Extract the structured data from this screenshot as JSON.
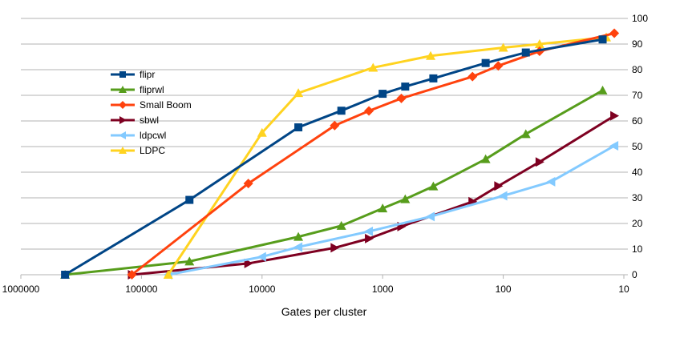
{
  "chart_data": {
    "type": "line",
    "title": "",
    "xlabel": "Gates per cluster",
    "ylabel": "",
    "x_scale": "log",
    "x_reversed": true,
    "xlim": [
      1000000,
      10
    ],
    "ylim": [
      0,
      100
    ],
    "x_ticks": [
      "1000000",
      "100000",
      "10000",
      "1000",
      "100",
      "10"
    ],
    "y_ticks": [
      "0",
      "10",
      "20",
      "30",
      "40",
      "50",
      "60",
      "70",
      "80",
      "90",
      "100"
    ],
    "y_axis_position": "right",
    "grid": "horizontal",
    "legend_position": "left",
    "series": [
      {
        "name": "flipr",
        "color": "#004586",
        "marker": "square",
        "points": [
          [
            430000,
            0
          ],
          [
            40000,
            29.2
          ],
          [
            5000,
            57.5
          ],
          [
            2200,
            64
          ],
          [
            1000,
            70.6
          ],
          [
            650,
            73.4
          ],
          [
            380,
            76.6
          ],
          [
            140,
            82.6
          ],
          [
            65,
            86.7
          ],
          [
            15,
            91.8
          ]
        ]
      },
      {
        "name": "fliprwl",
        "color": "#579D1C",
        "marker": "triangle-up",
        "points": [
          [
            430000,
            0
          ],
          [
            40000,
            5.2
          ],
          [
            5000,
            14.8
          ],
          [
            2200,
            19.1
          ],
          [
            1000,
            25.9
          ],
          [
            650,
            29.5
          ],
          [
            380,
            34.5
          ],
          [
            140,
            45.1
          ],
          [
            65,
            54.9
          ],
          [
            15,
            71.9
          ]
        ]
      },
      {
        "name": "Small Boom",
        "color": "#FF420E",
        "marker": "diamond",
        "points": [
          [
            120000,
            0
          ],
          [
            13000,
            35.6
          ],
          [
            2500,
            58.2
          ],
          [
            1300,
            63.9
          ],
          [
            700,
            68.8
          ],
          [
            180,
            77.3
          ],
          [
            110,
            81.5
          ],
          [
            50,
            87.2
          ],
          [
            12,
            94.2
          ]
        ]
      },
      {
        "name": "sbwl",
        "color": "#7E0021",
        "marker": "triangle-right",
        "points": [
          [
            120000,
            0
          ],
          [
            13000,
            4.4
          ],
          [
            2500,
            10.5
          ],
          [
            1300,
            14.1
          ],
          [
            700,
            18.8
          ],
          [
            180,
            28.5
          ],
          [
            110,
            34.6
          ],
          [
            50,
            44
          ],
          [
            12,
            62
          ]
        ]
      },
      {
        "name": "ldpcwl",
        "color": "#83CAFF",
        "marker": "triangle-left",
        "points": [
          [
            60000,
            0
          ],
          [
            10000,
            7
          ],
          [
            5000,
            10.8
          ],
          [
            1300,
            16.9
          ],
          [
            400,
            22.7
          ],
          [
            100,
            30.8
          ],
          [
            40,
            36.3
          ],
          [
            12,
            50.3
          ]
        ]
      },
      {
        "name": "LDPC",
        "color": "#FFD320",
        "marker": "triangle-up",
        "points": [
          [
            60000,
            0
          ],
          [
            10000,
            55.4
          ],
          [
            5000,
            70.9
          ],
          [
            1200,
            80.8
          ],
          [
            400,
            85.4
          ],
          [
            100,
            88.6
          ],
          [
            50,
            90
          ],
          [
            14,
            92.6
          ]
        ]
      }
    ]
  }
}
